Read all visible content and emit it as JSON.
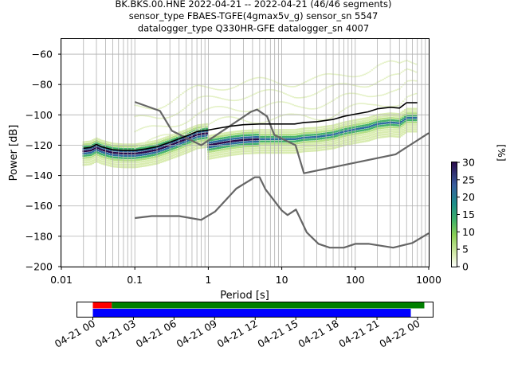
{
  "chart_data": {
    "type": "heatmap",
    "title_lines": [
      "BK.BKS.00.HNE   2022-04-21 -- 2022-04-21  (46/46 segments)",
      "sensor_type FBAES-TGFE(4gmax5v_g) sensor_sn 5547",
      "datalogger_type Q330HR-GFE datalogger_sn 4007"
    ],
    "xlabel": "Period [s]",
    "ylabel": "Power [dB]",
    "x_scale": "log",
    "xlim": [
      0.01,
      1000
    ],
    "ylim": [
      -200,
      -50
    ],
    "x_tick_labels": [
      "0.01",
      "0.1",
      "1",
      "10",
      "100",
      "1000"
    ],
    "x_tick_values": [
      0.01,
      0.1,
      1,
      10,
      100,
      1000
    ],
    "y_tick_values": [
      -200,
      -180,
      -160,
      -140,
      -120,
      -100,
      -80,
      -60
    ],
    "y_tick_labels": [
      "−200",
      "−180",
      "−160",
      "−140",
      "−120",
      "−100",
      "−80",
      "−60"
    ],
    "grid": true,
    "colorbar": {
      "label": "[%]",
      "range": [
        0,
        30
      ],
      "tick_values": [
        0,
        5,
        10,
        15,
        20,
        25,
        30
      ],
      "tick_labels": [
        "0",
        "5",
        "10",
        "15",
        "20",
        "25",
        "30"
      ]
    },
    "series": [
      {
        "role": "mean_psd",
        "color": "#000000",
        "points": [
          [
            0.02,
            -122
          ],
          [
            0.025,
            -121.5
          ],
          [
            0.03,
            -119.5
          ],
          [
            0.035,
            -121
          ],
          [
            0.05,
            -123
          ],
          [
            0.07,
            -123.5
          ],
          [
            0.1,
            -123.5
          ],
          [
            0.14,
            -122.5
          ],
          [
            0.2,
            -121
          ],
          [
            0.3,
            -118
          ],
          [
            0.5,
            -114
          ],
          [
            0.7,
            -111
          ],
          [
            1,
            -110
          ],
          [
            1.5,
            -108.5
          ],
          [
            2,
            -107.5
          ],
          [
            3,
            -106.5
          ],
          [
            5,
            -106
          ],
          [
            10,
            -106
          ],
          [
            15,
            -106
          ],
          [
            20,
            -105
          ],
          [
            30,
            -104.5
          ],
          [
            50,
            -103
          ],
          [
            70,
            -101
          ],
          [
            100,
            -99.5
          ],
          [
            150,
            -98
          ],
          [
            200,
            -96
          ],
          [
            300,
            -95
          ],
          [
            400,
            -95.5
          ],
          [
            500,
            -92
          ],
          [
            700,
            -92
          ]
        ]
      },
      {
        "role": "new_high_noise_model",
        "color": "#666666",
        "points": [
          [
            0.1,
            -91.5
          ],
          [
            0.22,
            -97.4
          ],
          [
            0.32,
            -110.5
          ],
          [
            0.8,
            -120
          ],
          [
            3.8,
            -98
          ],
          [
            4.6,
            -96.5
          ],
          [
            6.3,
            -101
          ],
          [
            7.9,
            -113.2
          ],
          [
            15.4,
            -120
          ],
          [
            20,
            -138.5
          ],
          [
            354.8,
            -126
          ],
          [
            1000,
            -112
          ]
        ]
      },
      {
        "role": "new_low_noise_model",
        "color": "#666666",
        "points": [
          [
            0.1,
            -168
          ],
          [
            0.17,
            -166.7
          ],
          [
            0.4,
            -166.7
          ],
          [
            0.8,
            -169.2
          ],
          [
            1.24,
            -163.7
          ],
          [
            2.4,
            -148.6
          ],
          [
            4.3,
            -141.1
          ],
          [
            5,
            -141.1
          ],
          [
            6,
            -149
          ],
          [
            10,
            -163
          ],
          [
            12,
            -166
          ],
          [
            15.6,
            -162.4
          ],
          [
            21.9,
            -177.5
          ],
          [
            31.6,
            -185
          ],
          [
            45,
            -187.5
          ],
          [
            70,
            -187.5
          ],
          [
            100,
            -185
          ],
          [
            154,
            -185
          ],
          [
            328,
            -187.5
          ],
          [
            600,
            -184.4
          ],
          [
            1000,
            -178
          ]
        ]
      }
    ],
    "timeline": {
      "tick_labels": [
        "04-21 00",
        "04-21 03",
        "04-21 06",
        "04-21 09",
        "04-21 12",
        "04-21 15",
        "04-21 18",
        "04-21 21",
        "04-22 00"
      ],
      "bars": [
        {
          "role": "gaps",
          "color": "#ff0000",
          "start_hours": 0,
          "end_hours": 1.4
        },
        {
          "role": "data_available",
          "color": "#008000",
          "start_hours": 1.4,
          "end_hours": 24.5
        },
        {
          "role": "psd_segments",
          "color": "#0000ff",
          "start_hours": 0,
          "end_hours": 23.5
        }
      ]
    }
  }
}
